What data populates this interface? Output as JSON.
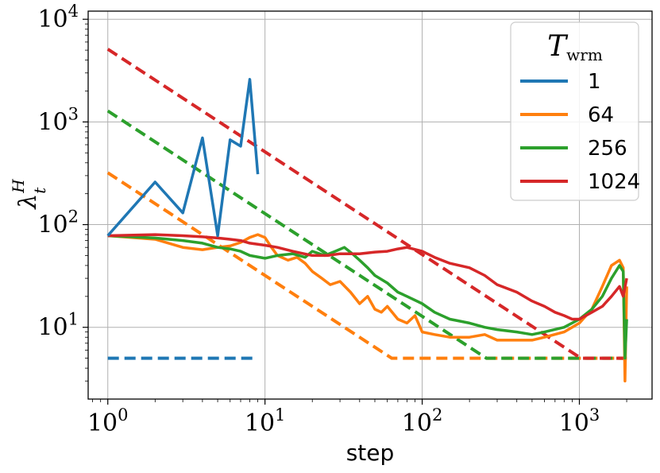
{
  "chart_data": {
    "type": "line",
    "title": "",
    "xlabel": "step",
    "ylabel_base": "λ",
    "ylabel_sup": "H",
    "ylabel_sub": "t",
    "xscale": "log",
    "yscale": "log",
    "xlim": [
      0.75,
      2900
    ],
    "ylim": [
      2.0,
      12000
    ],
    "grid": true,
    "x_ticks": [
      {
        "base": "10",
        "exp": "0",
        "value": 1
      },
      {
        "base": "10",
        "exp": "1",
        "value": 10
      },
      {
        "base": "10",
        "exp": "2",
        "value": 100
      },
      {
        "base": "10",
        "exp": "3",
        "value": 1000
      }
    ],
    "y_ticks": [
      {
        "base": "10",
        "exp": "1",
        "value": 10
      },
      {
        "base": "10",
        "exp": "2",
        "value": 100
      },
      {
        "base": "10",
        "exp": "3",
        "value": 1000
      },
      {
        "base": "10",
        "exp": "4",
        "value": 10000
      }
    ],
    "legend": {
      "placement": "top-right",
      "title_base": "T",
      "title_sub": "wrm"
    },
    "series": [
      {
        "name": "1",
        "color": "#1f77b4",
        "solid": {
          "x": [
            1,
            2,
            3,
            4,
            5,
            6,
            7,
            8,
            9
          ],
          "y": [
            78,
            260,
            130,
            700,
            78,
            670,
            580,
            2600,
            310
          ]
        },
        "dashed": {
          "x": [
            1,
            9
          ],
          "y": [
            5,
            5
          ]
        }
      },
      {
        "name": "64",
        "color": "#ff7f0e",
        "solid": {
          "x": [
            1,
            2,
            3,
            4,
            5,
            6,
            7,
            8,
            9,
            10,
            11,
            12,
            14,
            16,
            18,
            20,
            23,
            26,
            30,
            35,
            40,
            45,
            50,
            55,
            60,
            70,
            80,
            90,
            100,
            120,
            150,
            200,
            250,
            300,
            400,
            500,
            600,
            800,
            1000,
            1200,
            1400,
            1600,
            1800,
            1900,
            1950,
            2000
          ],
          "y": [
            78,
            72,
            60,
            57,
            60,
            62,
            67,
            75,
            80,
            75,
            60,
            50,
            45,
            48,
            42,
            35,
            30,
            26,
            28,
            22,
            17,
            20,
            15,
            14,
            16,
            12,
            11,
            13,
            9,
            8.5,
            8,
            8,
            8.5,
            7.5,
            7.5,
            7.5,
            8,
            9,
            11,
            15,
            25,
            40,
            45,
            38,
            3,
            25
          ]
        },
        "dashed": {
          "x": [
            1,
            64,
            2000
          ],
          "y": [
            320,
            5,
            5
          ]
        }
      },
      {
        "name": "256",
        "color": "#2ca02c",
        "solid": {
          "x": [
            1,
            2,
            3,
            4,
            5,
            6,
            7,
            8,
            10,
            12,
            15,
            18,
            20,
            24,
            28,
            32,
            36,
            40,
            45,
            50,
            60,
            70,
            80,
            100,
            120,
            150,
            200,
            250,
            300,
            400,
            500,
            600,
            800,
            1000,
            1200,
            1400,
            1600,
            1800,
            1900,
            1950,
            2000
          ],
          "y": [
            78,
            74,
            70,
            66,
            60,
            58,
            55,
            50,
            47,
            50,
            52,
            48,
            55,
            50,
            55,
            60,
            52,
            45,
            38,
            32,
            27,
            22,
            20,
            17,
            14,
            12,
            11,
            10,
            9.5,
            9,
            8.5,
            9,
            10,
            12,
            15,
            20,
            30,
            40,
            35,
            5,
            12
          ]
        },
        "dashed": {
          "x": [
            1,
            256,
            2000
          ],
          "y": [
            1280,
            5,
            5
          ]
        }
      },
      {
        "name": "1024",
        "color": "#d62728",
        "solid": {
          "x": [
            1,
            2,
            3,
            4,
            5,
            6,
            7,
            8,
            10,
            12,
            15,
            20,
            25,
            30,
            40,
            50,
            60,
            70,
            80,
            100,
            120,
            150,
            200,
            250,
            300,
            400,
            500,
            600,
            700,
            800,
            900,
            1000,
            1200,
            1400,
            1600,
            1800,
            1900,
            2000
          ],
          "y": [
            78,
            80,
            78,
            76,
            74,
            72,
            70,
            66,
            63,
            60,
            55,
            50,
            50,
            52,
            52,
            54,
            55,
            58,
            60,
            55,
            48,
            42,
            38,
            32,
            26,
            22,
            18,
            16,
            14,
            13,
            12,
            12,
            14,
            16,
            20,
            25,
            20,
            30
          ]
        },
        "dashed": {
          "x": [
            1,
            1024,
            2000
          ],
          "y": [
            5120,
            5,
            5
          ]
        }
      }
    ]
  }
}
